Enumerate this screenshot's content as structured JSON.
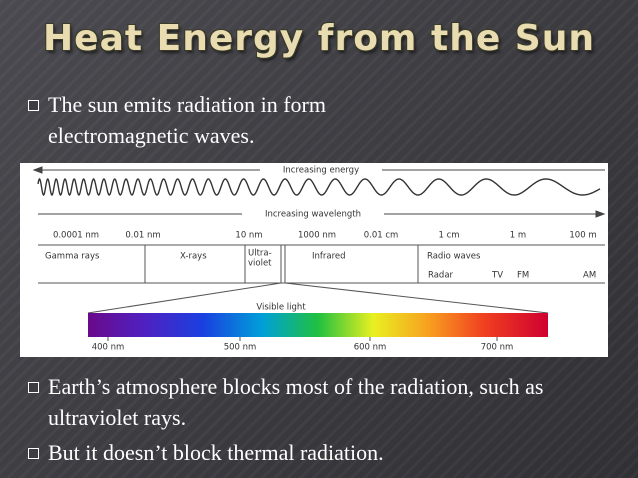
{
  "title": "Heat Energy from the Sun",
  "bullets": [
    "The sun emits radiation in form electromagnetic waves.",
    "Earth’s atmosphere blocks most of the radiation, such as ultraviolet rays.",
    "But it doesn’t block thermal radiation."
  ],
  "diagram": {
    "energy_label": "Increasing energy",
    "wavelength_label": "Increasing wavelength",
    "wavelength_ticks": [
      "0.0001 nm",
      "0.01 nm",
      "10 nm",
      "1000 nm",
      "0.01 cm",
      "1 cm",
      "1 m",
      "100 m"
    ],
    "regions": [
      "Gamma rays",
      "X-rays",
      "Ultra-",
      "violet",
      "Infrared",
      "Radio waves"
    ],
    "radio_bands": [
      "Radar",
      "TV",
      "FM",
      "AM"
    ],
    "visible_label": "Visible light",
    "visible_ticks": [
      "400 nm",
      "500 nm",
      "600 nm",
      "700 nm"
    ]
  }
}
